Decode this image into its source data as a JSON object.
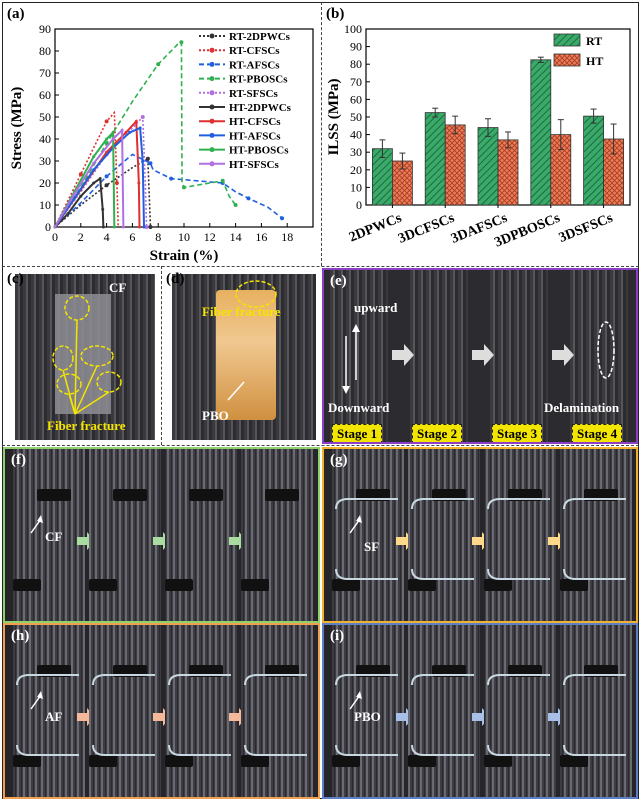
{
  "panels": {
    "a": {
      "label": "(a)"
    },
    "b": {
      "label": "(b)"
    },
    "c": {
      "label": "(c)",
      "cf": "CF",
      "fiber_fracture": "Fiber fracture"
    },
    "d": {
      "label": "(d)",
      "fiber_fracture": "Fiber fracture",
      "pbo": "PBO"
    },
    "e": {
      "label": "(e)",
      "upward": "upward",
      "downward": "Downward",
      "delamination": "Delamination",
      "stages": [
        "Stage 1",
        "Stage 2",
        "Stage 3",
        "Stage 4"
      ]
    },
    "f": {
      "label": "(f)",
      "fiber": "CF",
      "border_color": "#8fd16a",
      "arrow_color": "#a8dca0"
    },
    "g": {
      "label": "(g)",
      "fiber": "SF",
      "border_color": "#f0b030",
      "arrow_color": "#ffd98a"
    },
    "h": {
      "label": "(h)",
      "fiber": "AF",
      "border_color": "#f0a050",
      "arrow_color": "#f5b89a"
    },
    "i": {
      "label": "(i)",
      "fiber": "PBO",
      "border_color": "#5b80c8",
      "arrow_color": "#a8c0e8"
    }
  },
  "chart_data": [
    {
      "type": "line",
      "xlabel": "Strain (%)",
      "ylabel": "Stress (MPa)",
      "xlim": [
        0,
        20
      ],
      "ylim": [
        0,
        90
      ],
      "xticks": [
        0,
        2,
        4,
        6,
        8,
        10,
        12,
        14,
        16,
        18
      ],
      "yticks": [
        0,
        10,
        20,
        30,
        40,
        50,
        60,
        70,
        80,
        90
      ],
      "legend": "top-right",
      "series": [
        {
          "name": "RT-2DPWCs",
          "color": "#333333",
          "dash": "dotted",
          "x": [
            0,
            2,
            4,
            6,
            7.2,
            7.3,
            7.4
          ],
          "y": [
            0,
            10,
            19,
            27,
            31,
            15,
            0
          ]
        },
        {
          "name": "RT-CFSCs",
          "color": "#e03030",
          "dash": "dotted",
          "x": [
            0,
            1,
            2,
            3,
            4,
            4.6,
            4.8,
            4.9
          ],
          "y": [
            0,
            12,
            24,
            36,
            48,
            52,
            20,
            0
          ]
        },
        {
          "name": "RT-AFSCs",
          "color": "#2060e0",
          "dash": "dashed",
          "x": [
            0,
            2,
            4,
            6,
            7.4,
            7.6,
            9,
            11,
            13,
            14,
            15,
            16.5,
            17.6
          ],
          "y": [
            0,
            11,
            23,
            33,
            29,
            26,
            22,
            21,
            20,
            16,
            13,
            9,
            4
          ]
        },
        {
          "name": "RT-PBOSCs",
          "color": "#30b050",
          "dash": "dashed",
          "x": [
            0,
            2,
            4,
            6,
            8,
            9.5,
            9.8,
            9.85,
            10,
            12,
            13,
            13.5,
            14
          ],
          "y": [
            0,
            18,
            38,
            57,
            74,
            83,
            84,
            20,
            18,
            20,
            21,
            14,
            10
          ]
        },
        {
          "name": "RT-SFSCs",
          "color": "#b070e0",
          "dash": "dotted",
          "x": [
            0,
            2,
            4,
            6,
            6.8,
            7,
            7.1
          ],
          "y": [
            0,
            16,
            33,
            45,
            50,
            20,
            0
          ]
        },
        {
          "name": "HT-2DPWCs",
          "color": "#333333",
          "dash": "solid",
          "x": [
            0,
            1,
            2,
            3,
            3.5,
            3.7,
            3.75
          ],
          "y": [
            0,
            6,
            14,
            20,
            22,
            8,
            0
          ]
        },
        {
          "name": "HT-CFSCs",
          "color": "#e03030",
          "dash": "solid",
          "x": [
            0,
            2,
            4,
            5.5,
            6.3,
            6.5,
            6.55
          ],
          "y": [
            0,
            17,
            34,
            43,
            48,
            20,
            0
          ]
        },
        {
          "name": "HT-AFSCs",
          "color": "#2060e0",
          "dash": "solid",
          "x": [
            0,
            1.5,
            3,
            4.5,
            5.8,
            6.6,
            6.8,
            6.9
          ],
          "y": [
            0,
            13,
            26,
            36,
            43,
            45,
            30,
            0
          ]
        },
        {
          "name": "HT-PBOSCs",
          "color": "#30b050",
          "dash": "solid",
          "x": [
            0,
            1.5,
            3,
            4,
            4.5,
            4.6
          ],
          "y": [
            0,
            16,
            32,
            40,
            43,
            0
          ]
        },
        {
          "name": "HT-SFSCs",
          "color": "#b070e0",
          "dash": "solid",
          "x": [
            0,
            1.5,
            3,
            4.5,
            5.2,
            5.3
          ],
          "y": [
            0,
            15,
            29,
            40,
            44,
            0
          ]
        }
      ]
    },
    {
      "type": "bar",
      "ylabel": "ILSS (MPa)",
      "ylim": [
        0,
        100
      ],
      "yticks": [
        0,
        10,
        20,
        30,
        40,
        50,
        60,
        70,
        80,
        90,
        100
      ],
      "categories": [
        "2DPWCs",
        "3DCFSCs",
        "3DAFSCs",
        "3DPBOSCs",
        "3DSFSCs"
      ],
      "legend": "top-right",
      "series": [
        {
          "name": "RT",
          "color": "#3aaa6a",
          "values": [
            32,
            52.5,
            44,
            82.5,
            50.5
          ],
          "errors": [
            5,
            2.5,
            5,
            1.5,
            4
          ]
        },
        {
          "name": "HT",
          "color": "#f07a5a",
          "values": [
            25,
            45.5,
            37,
            40,
            37.5
          ],
          "errors": [
            4.5,
            5,
            4.5,
            8.5,
            8.5
          ]
        }
      ]
    }
  ]
}
